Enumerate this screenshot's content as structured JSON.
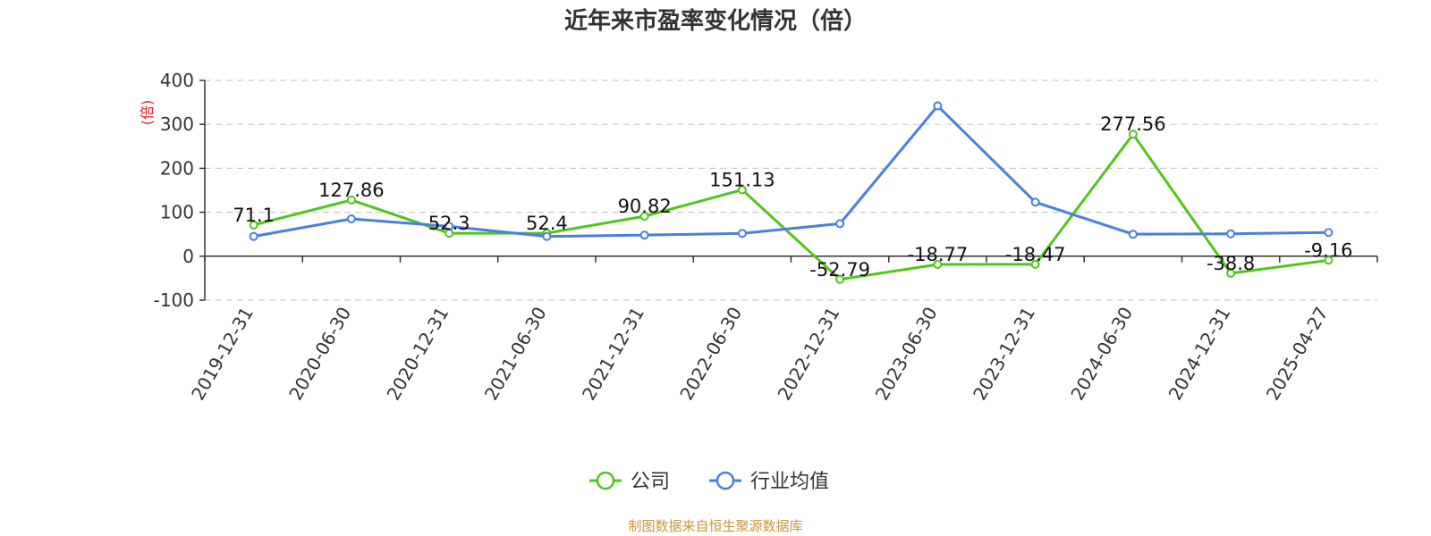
{
  "chart_data": {
    "type": "line",
    "title": "近年来市盈率变化情况（倍）",
    "ylabel": "(倍)",
    "xlabel": "",
    "ylim": [
      -100,
      400
    ],
    "yticks": [
      -100,
      0,
      100,
      200,
      300,
      400
    ],
    "grid": true,
    "legend_position": "bottom",
    "categories": [
      "2019-12-31",
      "2020-06-30",
      "2020-12-31",
      "2021-06-30",
      "2021-12-31",
      "2022-06-30",
      "2022-12-31",
      "2023-06-30",
      "2023-12-31",
      "2024-06-30",
      "2024-12-31",
      "2025-04-27"
    ],
    "series": [
      {
        "name": "公司",
        "color": "#52c41a",
        "values": [
          71.1,
          127.86,
          52.3,
          52.4,
          90.82,
          151.13,
          -52.79,
          -18.77,
          -18.47,
          277.56,
          -38.8,
          -9.16
        ],
        "labels": [
          "71.1",
          "127.86",
          "52.3",
          "52.4",
          "90.82",
          "151.13",
          "-52.79",
          "-18.77",
          "-18.47",
          "277.56",
          "-38.8",
          "-9.16"
        ]
      },
      {
        "name": "行业均值",
        "color": "#4a7fdc",
        "values": [
          45,
          85,
          68,
          45,
          48,
          52,
          74,
          342,
          123,
          50,
          51,
          54
        ]
      }
    ]
  },
  "footer": {
    "source_text": "制图数据来自恒生聚源数据库"
  }
}
